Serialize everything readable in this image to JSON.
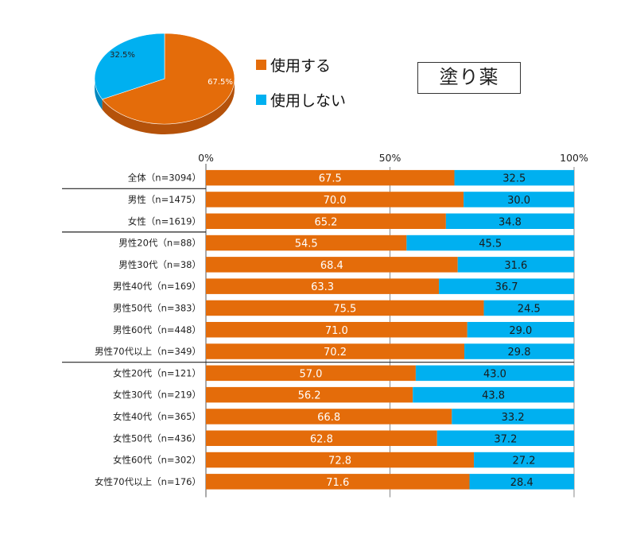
{
  "title": "塗り薬",
  "colors": {
    "use": "#E46C0A",
    "no_use": "#00B0F0"
  },
  "legend": [
    {
      "label": "使用する",
      "color": "#E46C0A"
    },
    {
      "label": "使用しない",
      "color": "#00B0F0"
    }
  ],
  "chart_data": [
    {
      "type": "pie",
      "labels": [
        "使用する",
        "使用しない"
      ],
      "values": [
        67.5,
        32.5
      ],
      "value_labels": [
        "67.5%",
        "32.5%"
      ]
    },
    {
      "type": "bar",
      "orientation": "horizontal",
      "stacked": true,
      "xlim": [
        0,
        100
      ],
      "tick_labels": [
        "0%",
        "50%",
        "100%"
      ],
      "categories": [
        "全体（n=3094）",
        "男性（n=1475）",
        "女性（n=1619）",
        "男性20代（n=88）",
        "男性30代（n=38）",
        "男性40代（n=169）",
        "男性50代（n=383）",
        "男性60代（n=448）",
        "男性70代以上（n=349）",
        "女性20代（n=121）",
        "女性30代（n=219）",
        "女性40代（n=365）",
        "女性50代（n=436）",
        "女性60代（n=302）",
        "女性70代以上（n=176）"
      ],
      "series": [
        {
          "name": "使用する",
          "values": [
            67.5,
            70.0,
            65.2,
            54.5,
            68.4,
            63.3,
            75.5,
            71.0,
            70.2,
            57.0,
            56.2,
            66.8,
            62.8,
            72.8,
            71.6
          ]
        },
        {
          "name": "使用しない",
          "values": [
            32.5,
            30.0,
            34.8,
            45.5,
            31.6,
            36.7,
            24.5,
            29.0,
            29.8,
            43.0,
            43.8,
            33.2,
            37.2,
            27.2,
            28.4
          ]
        }
      ],
      "value_text": [
        [
          "67.5",
          "70.0",
          "65.2",
          "54.5",
          "68.4",
          "63.3",
          "75.5",
          "71.0",
          "70.2",
          "57.0",
          "56.2",
          "66.8",
          "62.8",
          "72.8",
          "71.6"
        ],
        [
          "32.5",
          "30.0",
          "34.8",
          "45.5",
          "31.6",
          "36.7",
          "24.5",
          "29.0",
          "29.8",
          "43.0",
          "43.8",
          "33.2",
          "37.2",
          "27.2",
          "28.4"
        ]
      ]
    }
  ]
}
